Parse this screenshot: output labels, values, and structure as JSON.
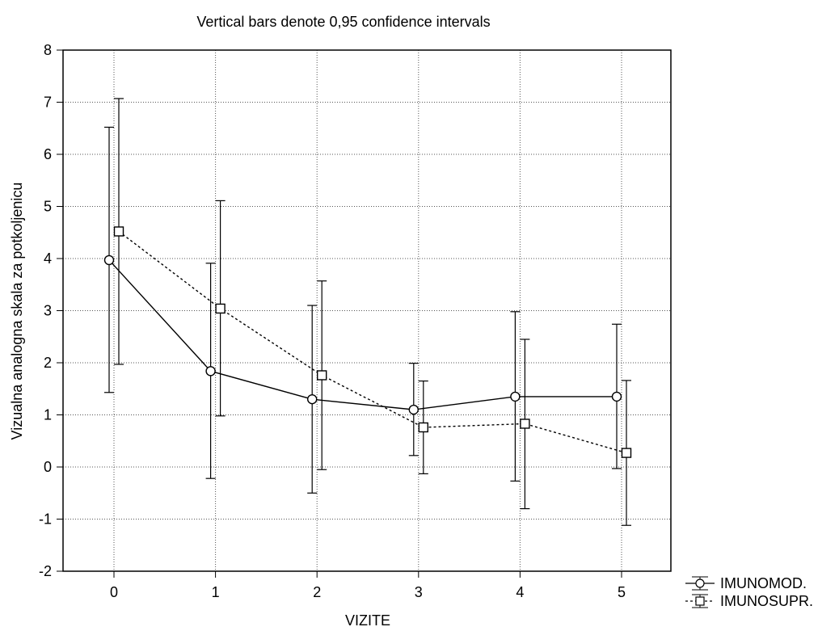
{
  "chart_data": {
    "type": "line",
    "title": "Vertical bars denote 0,95 confidence intervals",
    "xlabel": "VIZITE",
    "ylabel": "Vizualna analogna skala za potkoljenicu",
    "categories": [
      "0",
      "1",
      "2",
      "3",
      "4",
      "5"
    ],
    "x_ticks": [
      "0",
      "1",
      "2",
      "3",
      "4",
      "5"
    ],
    "y_ticks": [
      "-2",
      "-1",
      "0",
      "1",
      "2",
      "3",
      "4",
      "5",
      "6",
      "7",
      "8"
    ],
    "ylim": [
      -2,
      8
    ],
    "grid": true,
    "legend_position": "bottom-right outside",
    "series": [
      {
        "name": "IMUNOMOD.",
        "marker": "circle",
        "line_style": "solid",
        "values": [
          3.97,
          1.84,
          1.3,
          1.1,
          1.35,
          1.35
        ],
        "ci_low": [
          1.43,
          -0.22,
          -0.5,
          0.22,
          -0.27,
          -0.03
        ],
        "ci_high": [
          6.52,
          3.91,
          3.1,
          1.99,
          2.98,
          2.74
        ]
      },
      {
        "name": "IMUNOSUPR.",
        "marker": "square",
        "line_style": "dotted",
        "values": [
          4.52,
          3.04,
          1.76,
          0.76,
          0.83,
          0.27
        ],
        "ci_low": [
          1.97,
          0.98,
          -0.05,
          -0.13,
          -0.8,
          -1.12
        ],
        "ci_high": [
          7.07,
          5.11,
          3.57,
          1.65,
          2.45,
          1.66
        ]
      }
    ]
  }
}
